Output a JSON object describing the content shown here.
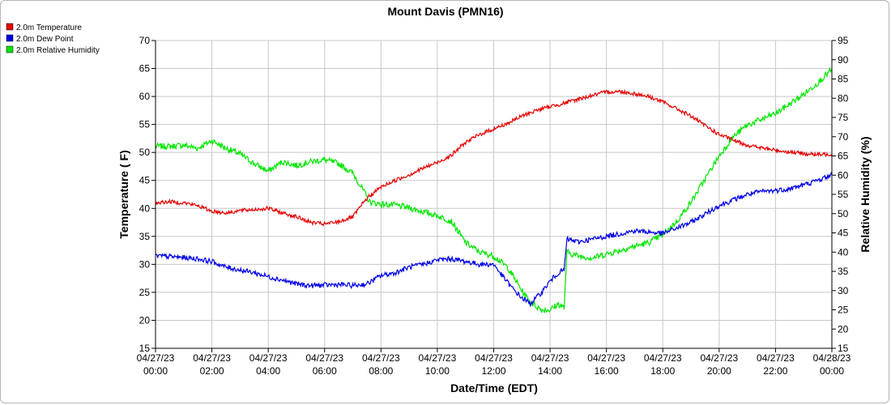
{
  "chart_data": {
    "type": "line",
    "title": "Mount Davis (PMN16)",
    "xlabel": "Date/Time (EDT)",
    "ylabel_left": "Temperature ( F)",
    "ylabel_right": "Relative Humidity (%)",
    "ylim_left": [
      15,
      70
    ],
    "ylim_right": [
      15,
      95
    ],
    "xlim_hours": [
      0,
      24
    ],
    "grid": true,
    "legend_position": "top-left",
    "x_ticks": [
      {
        "date": "04/27/23",
        "time": "00:00"
      },
      {
        "date": "04/27/23",
        "time": "02:00"
      },
      {
        "date": "04/27/23",
        "time": "04:00"
      },
      {
        "date": "04/27/23",
        "time": "06:00"
      },
      {
        "date": "04/27/23",
        "time": "08:00"
      },
      {
        "date": "04/27/23",
        "time": "10:00"
      },
      {
        "date": "04/27/23",
        "time": "12:00"
      },
      {
        "date": "04/27/23",
        "time": "14:00"
      },
      {
        "date": "04/27/23",
        "time": "16:00"
      },
      {
        "date": "04/27/23",
        "time": "18:00"
      },
      {
        "date": "04/27/23",
        "time": "20:00"
      },
      {
        "date": "04/27/23",
        "time": "22:00"
      },
      {
        "date": "04/28/23",
        "time": "00:00"
      }
    ],
    "y_ticks_left": [
      15,
      20,
      25,
      30,
      35,
      40,
      45,
      50,
      55,
      60,
      65,
      70
    ],
    "y_ticks_right": [
      15,
      20,
      25,
      30,
      35,
      40,
      45,
      50,
      55,
      60,
      65,
      70,
      75,
      80,
      85,
      90,
      95
    ],
    "series": [
      {
        "name": "2.0m Temperature",
        "color": "#e60000",
        "axis": "left",
        "x": [
          0,
          0.5,
          1,
          1.5,
          2,
          2.5,
          3,
          3.5,
          4,
          4.5,
          5,
          5.5,
          6,
          6.5,
          7,
          7.5,
          8,
          8.5,
          9,
          9.5,
          10,
          10.5,
          11,
          11.5,
          12,
          12.5,
          13,
          13.5,
          14,
          14.5,
          15,
          15.5,
          16,
          16.5,
          17,
          17.5,
          18,
          18.5,
          19,
          19.5,
          20,
          20.5,
          21,
          21.5,
          22,
          22.5,
          23,
          23.5,
          24
        ],
        "y": [
          41.0,
          41.2,
          41.0,
          40.5,
          39.5,
          39.2,
          39.6,
          39.8,
          40.0,
          39.2,
          38.5,
          37.5,
          37.2,
          37.6,
          38.5,
          41.8,
          43.8,
          45.0,
          46.0,
          47.2,
          48.2,
          49.5,
          51.8,
          53.2,
          54.2,
          55.2,
          56.5,
          57.5,
          58.2,
          58.8,
          59.5,
          60.2,
          60.8,
          60.9,
          60.5,
          60.0,
          59.0,
          57.8,
          56.5,
          54.8,
          53.2,
          52.2,
          51.3,
          50.8,
          50.4,
          50.1,
          49.8,
          49.6,
          49.7
        ]
      },
      {
        "name": "2.0m Dew Point",
        "color": "#0000e6",
        "axis": "left",
        "x": [
          0,
          0.5,
          1,
          1.5,
          2,
          2.5,
          3,
          3.5,
          4,
          4.5,
          5,
          5.5,
          6,
          6.5,
          7,
          7.5,
          8,
          8.5,
          9,
          9.5,
          10,
          10.5,
          11,
          11.5,
          12,
          12.3,
          12.7,
          13,
          13.3,
          13.7,
          14,
          14.3,
          14.5,
          14.6,
          15,
          15.5,
          16,
          16.5,
          17,
          17.5,
          18,
          18.5,
          19,
          19.5,
          20,
          20.5,
          21,
          21.5,
          22,
          22.5,
          23,
          23.5,
          24
        ],
        "y": [
          31.5,
          31.4,
          31.2,
          31.0,
          30.5,
          29.5,
          29.0,
          28.5,
          27.8,
          27.2,
          26.5,
          26.2,
          26.3,
          26.4,
          26.2,
          26.5,
          28.0,
          28.5,
          29.5,
          30.0,
          30.8,
          31.0,
          30.5,
          30.0,
          30.0,
          28.0,
          25.5,
          24.0,
          23.0,
          25.0,
          27.0,
          28.5,
          29.0,
          34.5,
          34.0,
          34.5,
          35.0,
          35.5,
          36.0,
          35.8,
          35.5,
          36.5,
          37.5,
          39.0,
          40.5,
          41.5,
          42.5,
          43.0,
          43.2,
          43.5,
          44.2,
          45.0,
          46.0
        ]
      },
      {
        "name": "2.0m Relative Humidity",
        "color": "#00e600",
        "axis": "right",
        "x": [
          0,
          0.5,
          1,
          1.5,
          2,
          2.5,
          3,
          3.5,
          4,
          4.5,
          5,
          5.5,
          6,
          6.5,
          7,
          7.3,
          7.6,
          8,
          8.5,
          9,
          9.5,
          10,
          10.5,
          11,
          11.5,
          12,
          12.5,
          13,
          13.3,
          13.7,
          14,
          14.3,
          14.5,
          14.6,
          15,
          15.5,
          16,
          16.5,
          17,
          17.5,
          18,
          18.5,
          19,
          19.5,
          20,
          20.5,
          21,
          21.5,
          22,
          22.5,
          23,
          23.5,
          24
        ],
        "y": [
          67.5,
          67.5,
          67.8,
          67.0,
          69.0,
          67.0,
          65.5,
          63.0,
          61.0,
          63.5,
          62.5,
          63.5,
          64.0,
          63.0,
          60.5,
          57.0,
          53.0,
          52.5,
          52.2,
          51.5,
          50.5,
          49.5,
          48.0,
          42.5,
          40.0,
          39.0,
          36.0,
          30.0,
          27.0,
          25.0,
          25.0,
          26.5,
          25.5,
          40.0,
          39.0,
          38.5,
          39.5,
          40.5,
          41.5,
          42.5,
          44.5,
          48.0,
          53.0,
          59.0,
          65.0,
          70.0,
          73.0,
          74.5,
          76.0,
          78.5,
          81.0,
          84.0,
          87.5
        ]
      }
    ]
  }
}
